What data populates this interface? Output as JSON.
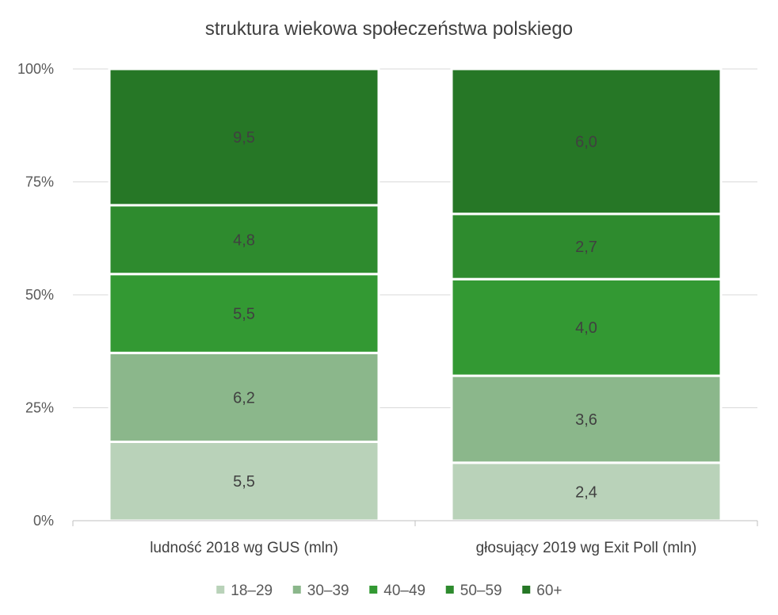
{
  "chart_data": {
    "type": "bar",
    "stacked": "percent",
    "title": "struktura wiekowa społeczeństwa polskiego",
    "xlabel": "",
    "ylabel": "",
    "ylim": [
      0,
      100
    ],
    "yticks": [
      "0%",
      "25%",
      "50%",
      "75%",
      "100%"
    ],
    "grid": true,
    "legend_position": "bottom",
    "categories": [
      "ludność 2018 wg GUS (mln)",
      "głosujący 2019 wg Exit Poll (mln)"
    ],
    "series": [
      {
        "name": "18–29",
        "color": "#b9d2b9",
        "values": [
          5.5,
          2.4
        ],
        "labels": [
          "5,5",
          "2,4"
        ]
      },
      {
        "name": "30–39",
        "color": "#8bb78b",
        "values": [
          6.2,
          3.6
        ],
        "labels": [
          "6,2",
          "3,6"
        ]
      },
      {
        "name": "40–49",
        "color": "#339933",
        "values": [
          5.5,
          4.0
        ],
        "labels": [
          "5,5",
          "4,0"
        ]
      },
      {
        "name": "50–59",
        "color": "#2e8b2e",
        "values": [
          4.8,
          2.7
        ],
        "labels": [
          "4,8",
          "2,7"
        ]
      },
      {
        "name": "60+",
        "color": "#267726",
        "values": [
          9.5,
          6.0
        ],
        "labels": [
          "9,5",
          "6,0"
        ]
      }
    ]
  }
}
